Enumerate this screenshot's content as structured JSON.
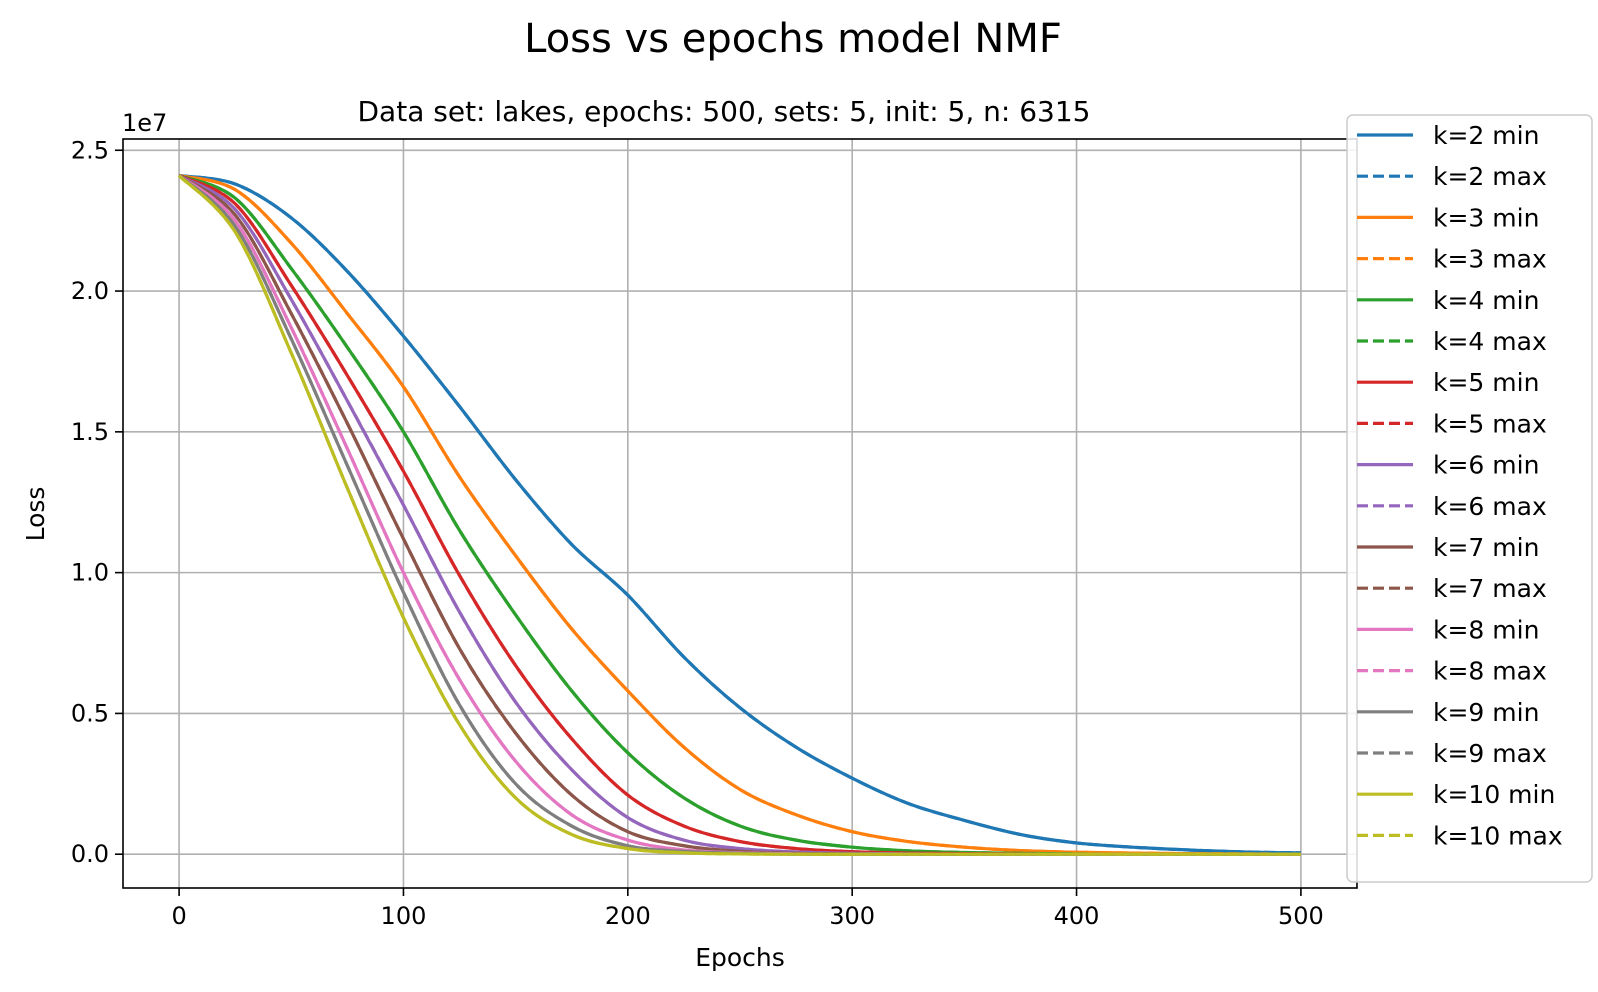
{
  "chart_data": {
    "type": "line",
    "title": "Loss vs epochs model NMF",
    "subtitle": "Data set:  lakes, epochs: 500, sets: 5, init: 5, n: 6315",
    "xlabel": "Epochs",
    "ylabel": "Loss",
    "y_offset_label": "1e7",
    "xlim": [
      -25,
      525
    ],
    "ylim": [
      -0.12,
      2.54
    ],
    "grid": true,
    "legend_position": "right",
    "x_ticks": [
      0,
      100,
      200,
      300,
      400,
      500
    ],
    "x_tick_labels": [
      "0",
      "100",
      "200",
      "300",
      "400",
      "500"
    ],
    "y_ticks": [
      0,
      0.5,
      1.0,
      1.5,
      2.0,
      2.5
    ],
    "y_tick_labels": [
      "0.0",
      "0.5",
      "1.0",
      "1.5",
      "2.0",
      "2.5"
    ],
    "x": [
      0,
      25,
      50,
      75,
      100,
      125,
      150,
      175,
      200,
      225,
      250,
      275,
      300,
      325,
      350,
      375,
      400,
      425,
      450,
      475,
      500
    ],
    "series": [
      {
        "name": "k=2 min",
        "color": "#1f77b4",
        "dash": "solid",
        "values": [
          2.41,
          2.38,
          2.26,
          2.07,
          1.84,
          1.59,
          1.33,
          1.1,
          0.92,
          0.7,
          0.52,
          0.38,
          0.27,
          0.18,
          0.12,
          0.07,
          0.04,
          0.025,
          0.015,
          0.008,
          0.005
        ]
      },
      {
        "name": "k=2 max",
        "color": "#1f77b4",
        "dash": "dashed",
        "values": [
          2.41,
          2.38,
          2.26,
          2.07,
          1.84,
          1.59,
          1.33,
          1.1,
          0.92,
          0.7,
          0.52,
          0.38,
          0.27,
          0.18,
          0.12,
          0.07,
          0.04,
          0.025,
          0.015,
          0.008,
          0.005
        ]
      },
      {
        "name": "k=3 min",
        "color": "#ff7f0e",
        "dash": "solid",
        "values": [
          2.41,
          2.36,
          2.17,
          1.92,
          1.66,
          1.34,
          1.06,
          0.8,
          0.58,
          0.38,
          0.23,
          0.14,
          0.08,
          0.045,
          0.025,
          0.013,
          0.007,
          0.004,
          0.002,
          0.001,
          0.0
        ]
      },
      {
        "name": "k=3 max",
        "color": "#ff7f0e",
        "dash": "dashed",
        "values": [
          2.41,
          2.36,
          2.17,
          1.92,
          1.66,
          1.34,
          1.06,
          0.8,
          0.58,
          0.38,
          0.23,
          0.14,
          0.08,
          0.045,
          0.025,
          0.013,
          0.007,
          0.004,
          0.002,
          0.001,
          0.0
        ]
      },
      {
        "name": "k=4 min",
        "color": "#2ca02c",
        "dash": "solid",
        "values": [
          2.41,
          2.33,
          2.08,
          1.8,
          1.5,
          1.15,
          0.85,
          0.58,
          0.36,
          0.2,
          0.1,
          0.05,
          0.025,
          0.012,
          0.006,
          0.003,
          0.001,
          0.0,
          0.0,
          0.0,
          0.0
        ]
      },
      {
        "name": "k=4 max",
        "color": "#2ca02c",
        "dash": "dashed",
        "values": [
          2.41,
          2.33,
          2.08,
          1.8,
          1.5,
          1.15,
          0.85,
          0.58,
          0.36,
          0.2,
          0.1,
          0.05,
          0.025,
          0.012,
          0.006,
          0.003,
          0.001,
          0.0,
          0.0,
          0.0,
          0.0
        ]
      },
      {
        "name": "k=5 min",
        "color": "#d62728",
        "dash": "solid",
        "values": [
          2.41,
          2.31,
          2.02,
          1.7,
          1.36,
          0.99,
          0.67,
          0.41,
          0.21,
          0.1,
          0.045,
          0.02,
          0.009,
          0.004,
          0.002,
          0.001,
          0.0,
          0.0,
          0.0,
          0.0,
          0.0
        ]
      },
      {
        "name": "k=5 max",
        "color": "#d62728",
        "dash": "dashed",
        "values": [
          2.41,
          2.31,
          2.02,
          1.7,
          1.36,
          0.99,
          0.67,
          0.41,
          0.21,
          0.1,
          0.045,
          0.02,
          0.009,
          0.004,
          0.002,
          0.001,
          0.0,
          0.0,
          0.0,
          0.0,
          0.0
        ]
      },
      {
        "name": "k=6 min",
        "color": "#9467bd",
        "dash": "solid",
        "values": [
          2.41,
          2.29,
          1.97,
          1.61,
          1.24,
          0.86,
          0.54,
          0.3,
          0.13,
          0.05,
          0.02,
          0.008,
          0.003,
          0.001,
          0.0,
          0.0,
          0.0,
          0.0,
          0.0,
          0.0,
          0.0
        ]
      },
      {
        "name": "k=6 max",
        "color": "#9467bd",
        "dash": "dashed",
        "values": [
          2.41,
          2.29,
          1.97,
          1.61,
          1.24,
          0.86,
          0.54,
          0.3,
          0.13,
          0.05,
          0.02,
          0.008,
          0.003,
          0.001,
          0.0,
          0.0,
          0.0,
          0.0,
          0.0,
          0.0,
          0.0
        ]
      },
      {
        "name": "k=7 min",
        "color": "#8c564b",
        "dash": "solid",
        "values": [
          2.41,
          2.27,
          1.92,
          1.53,
          1.12,
          0.73,
          0.43,
          0.21,
          0.08,
          0.03,
          0.01,
          0.003,
          0.001,
          0.0,
          0.0,
          0.0,
          0.0,
          0.0,
          0.0,
          0.0,
          0.0
        ]
      },
      {
        "name": "k=7 max",
        "color": "#8c564b",
        "dash": "dashed",
        "values": [
          2.41,
          2.27,
          1.92,
          1.53,
          1.12,
          0.73,
          0.43,
          0.21,
          0.08,
          0.03,
          0.01,
          0.003,
          0.001,
          0.0,
          0.0,
          0.0,
          0.0,
          0.0,
          0.0,
          0.0,
          0.0
        ]
      },
      {
        "name": "k=8 min",
        "color": "#e377c2",
        "dash": "solid",
        "values": [
          2.41,
          2.25,
          1.87,
          1.44,
          1.0,
          0.62,
          0.33,
          0.14,
          0.05,
          0.015,
          0.005,
          0.001,
          0.0,
          0.0,
          0.0,
          0.0,
          0.0,
          0.0,
          0.0,
          0.0,
          0.0
        ]
      },
      {
        "name": "k=8 max",
        "color": "#e377c2",
        "dash": "dashed",
        "values": [
          2.41,
          2.25,
          1.87,
          1.44,
          1.0,
          0.62,
          0.33,
          0.14,
          0.05,
          0.015,
          0.005,
          0.001,
          0.0,
          0.0,
          0.0,
          0.0,
          0.0,
          0.0,
          0.0,
          0.0,
          0.0
        ]
      },
      {
        "name": "k=9 min",
        "color": "#7f7f7f",
        "dash": "solid",
        "values": [
          2.41,
          2.23,
          1.83,
          1.38,
          0.93,
          0.53,
          0.25,
          0.1,
          0.03,
          0.01,
          0.003,
          0.0,
          0.0,
          0.0,
          0.0,
          0.0,
          0.0,
          0.0,
          0.0,
          0.0,
          0.0
        ]
      },
      {
        "name": "k=9 max",
        "color": "#7f7f7f",
        "dash": "dashed",
        "values": [
          2.41,
          2.23,
          1.83,
          1.38,
          0.93,
          0.53,
          0.25,
          0.1,
          0.03,
          0.01,
          0.003,
          0.0,
          0.0,
          0.0,
          0.0,
          0.0,
          0.0,
          0.0,
          0.0,
          0.0,
          0.0
        ]
      },
      {
        "name": "k=10 min",
        "color": "#bcbd22",
        "dash": "solid",
        "values": [
          2.41,
          2.21,
          1.78,
          1.3,
          0.84,
          0.46,
          0.2,
          0.07,
          0.02,
          0.005,
          0.001,
          0.0,
          0.0,
          0.0,
          0.0,
          0.0,
          0.0,
          0.0,
          0.0,
          0.0,
          0.0
        ]
      },
      {
        "name": "k=10 max",
        "color": "#bcbd22",
        "dash": "dashed",
        "values": [
          2.41,
          2.21,
          1.78,
          1.3,
          0.84,
          0.46,
          0.2,
          0.07,
          0.02,
          0.005,
          0.001,
          0.0,
          0.0,
          0.0,
          0.0,
          0.0,
          0.0,
          0.0,
          0.0,
          0.0,
          0.0
        ]
      }
    ]
  }
}
